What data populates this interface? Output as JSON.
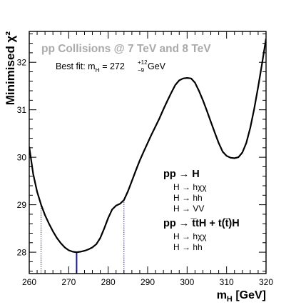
{
  "chart_data": {
    "type": "line",
    "title": "pp Collisions @ 7 TeV and 8 TeV",
    "best_fit": {
      "prefix": "Best fit: m",
      "sub": "H",
      "eq": " = 272 ",
      "up": "+12",
      "down": "−9",
      "unit": " GeV",
      "value": 272
    },
    "xlabel": {
      "main": "m",
      "sub": "H",
      "unit": " [GeV]"
    },
    "ylabel": "Minimised χ²",
    "xlim": [
      260,
      320
    ],
    "ylim": [
      27.55,
      32.65
    ],
    "xticks": [
      260,
      270,
      280,
      290,
      300,
      310,
      320
    ],
    "yticks": [
      28,
      29,
      30,
      31,
      32
    ],
    "one_sigma_interval": [
      263,
      284
    ],
    "series": [
      {
        "x": [
          260,
          261,
          262,
          263,
          264,
          265,
          266,
          267,
          268,
          269,
          270,
          271,
          272,
          273,
          274,
          275,
          276,
          277,
          278,
          279,
          280,
          281,
          282,
          283,
          284,
          285,
          286,
          287,
          288,
          289,
          290,
          291,
          292,
          293,
          294,
          295,
          296,
          297,
          298,
          299,
          300,
          301,
          302,
          303,
          304,
          305,
          306,
          307,
          308,
          309,
          310,
          311,
          312,
          313,
          314,
          315,
          316,
          317,
          318,
          319,
          320
        ],
        "y": [
          30.22,
          29.65,
          29.27,
          29.0,
          28.78,
          28.6,
          28.44,
          28.3,
          28.19,
          28.1,
          28.04,
          28.01,
          28.0,
          28.01,
          28.03,
          28.06,
          28.1,
          28.17,
          28.3,
          28.5,
          28.72,
          28.9,
          28.98,
          29.02,
          29.1,
          29.28,
          29.5,
          29.72,
          29.93,
          30.12,
          30.3,
          30.48,
          30.65,
          30.82,
          31.01,
          31.19,
          31.36,
          31.52,
          31.62,
          31.66,
          31.67,
          31.66,
          31.57,
          31.4,
          31.2,
          30.98,
          30.75,
          30.52,
          30.3,
          30.12,
          30.03,
          29.99,
          29.98,
          30.0,
          30.1,
          30.3,
          30.62,
          31.02,
          31.48,
          31.98,
          32.5
        ]
      }
    ],
    "legend": [
      {
        "kind": "header",
        "text": "pp → H"
      },
      {
        "kind": "item",
        "text": "H → hχχ"
      },
      {
        "kind": "item",
        "text": "H → hh"
      },
      {
        "kind": "item",
        "text": "H → VV"
      },
      {
        "kind": "header",
        "text": "pp → t̅tH + t(t̅)H"
      },
      {
        "kind": "item",
        "text": "H → hχχ"
      },
      {
        "kind": "item",
        "text": "H → hh"
      }
    ],
    "colors": {
      "curve": "#000000",
      "best_fit_line": "#1a1a99",
      "interval_lines": "#2a2aa8",
      "title": "#aaaaaa"
    },
    "grid": false,
    "legend_placement": "middle-right"
  }
}
